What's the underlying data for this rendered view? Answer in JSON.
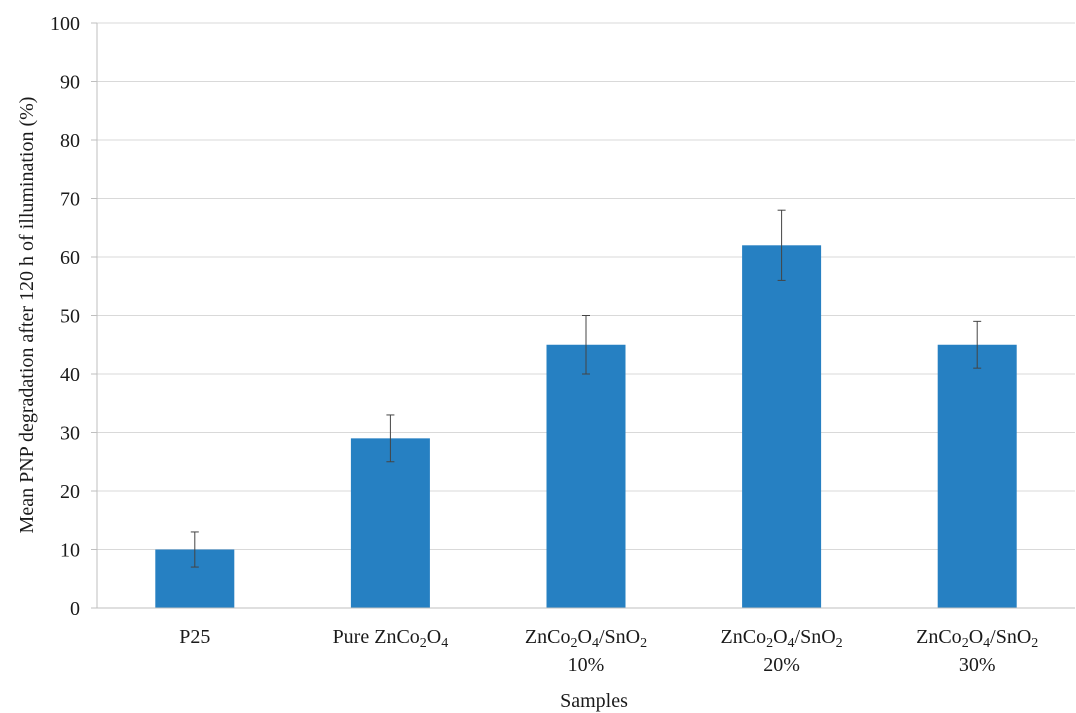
{
  "chart_data": {
    "type": "bar",
    "categories": [
      "P25",
      "Pure ZnCo2O4",
      "ZnCo2O4/SnO2 10%",
      "ZnCo2O4/SnO2 20%",
      "ZnCo2O4/SnO2 30%"
    ],
    "category_labels": [
      {
        "lines": [
          {
            "parts": [
              {
                "t": "P25"
              }
            ]
          }
        ]
      },
      {
        "lines": [
          {
            "parts": [
              {
                "t": "Pure ZnCo"
              },
              {
                "t": "2",
                "sub": true
              },
              {
                "t": "O"
              },
              {
                "t": "4",
                "sub": true
              }
            ]
          }
        ]
      },
      {
        "lines": [
          {
            "parts": [
              {
                "t": "ZnCo"
              },
              {
                "t": "2",
                "sub": true
              },
              {
                "t": "O"
              },
              {
                "t": "4",
                "sub": true
              },
              {
                "t": "/SnO"
              },
              {
                "t": "2",
                "sub": true
              }
            ]
          },
          {
            "parts": [
              {
                "t": "10%"
              }
            ]
          }
        ]
      },
      {
        "lines": [
          {
            "parts": [
              {
                "t": "ZnCo"
              },
              {
                "t": "2",
                "sub": true
              },
              {
                "t": "O"
              },
              {
                "t": "4",
                "sub": true
              },
              {
                "t": "/SnO"
              },
              {
                "t": "2",
                "sub": true
              }
            ]
          },
          {
            "parts": [
              {
                "t": "20%"
              }
            ]
          }
        ]
      },
      {
        "lines": [
          {
            "parts": [
              {
                "t": "ZnCo"
              },
              {
                "t": "2",
                "sub": true
              },
              {
                "t": "O"
              },
              {
                "t": "4",
                "sub": true
              },
              {
                "t": "/SnO"
              },
              {
                "t": "2",
                "sub": true
              }
            ]
          },
          {
            "parts": [
              {
                "t": "30%"
              }
            ]
          }
        ]
      }
    ],
    "values": [
      10,
      29,
      45,
      62,
      45
    ],
    "error_low": [
      7,
      25,
      40,
      56,
      41
    ],
    "error_high": [
      13,
      33,
      50,
      68,
      49
    ],
    "xlabel": "Samples",
    "ylabel": "Mean PNP degradation  after  120 h of illumination (%)",
    "ylim": [
      0,
      100
    ],
    "yticks": [
      0,
      10,
      20,
      30,
      40,
      50,
      60,
      70,
      80,
      90,
      100
    ],
    "grid": true,
    "bar_color": "#2680C2",
    "error_bar_color": "#444444",
    "grid_color": "#d9d9d9",
    "axis_color": "#bfbfbf"
  }
}
